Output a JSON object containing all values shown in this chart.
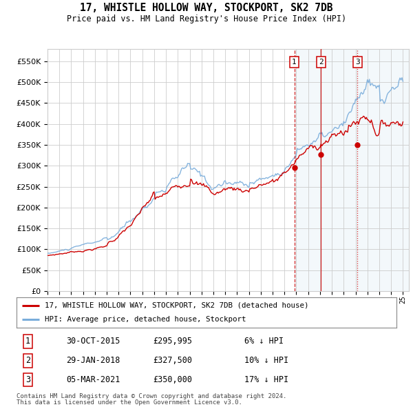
{
  "title": "17, WHISTLE HOLLOW WAY, STOCKPORT, SK2 7DB",
  "subtitle": "Price paid vs. HM Land Registry's House Price Index (HPI)",
  "ylim": [
    0,
    580000
  ],
  "yticks": [
    0,
    50000,
    100000,
    150000,
    200000,
    250000,
    300000,
    350000,
    400000,
    450000,
    500000,
    550000
  ],
  "xlim_start": 1995.0,
  "xlim_end": 2025.5,
  "legend_line1": "17, WHISTLE HOLLOW WAY, STOCKPORT, SK2 7DB (detached house)",
  "legend_line2": "HPI: Average price, detached house, Stockport",
  "transactions": [
    {
      "num": "1",
      "date": "30-OCT-2015",
      "price": "£295,995",
      "change": "6% ↓ HPI",
      "year": 2015.83
    },
    {
      "num": "2",
      "date": "29-JAN-2018",
      "price": "£327,500",
      "change": "10% ↓ HPI",
      "year": 2018.08
    },
    {
      "num": "3",
      "date": "05-MAR-2021",
      "price": "£350,000",
      "change": "17% ↓ HPI",
      "year": 2021.17
    }
  ],
  "footnote1": "Contains HM Land Registry data © Crown copyright and database right 2024.",
  "footnote2": "This data is licensed under the Open Government Licence v3.0.",
  "hpi_color": "#7aaddb",
  "price_color": "#cc0000",
  "shade_color": "#cce0f0",
  "transaction_box_color": "#cc0000",
  "grid_color": "#cccccc",
  "background_color": "#ffffff",
  "price_dot_values": [
    295995,
    327500,
    350000
  ]
}
